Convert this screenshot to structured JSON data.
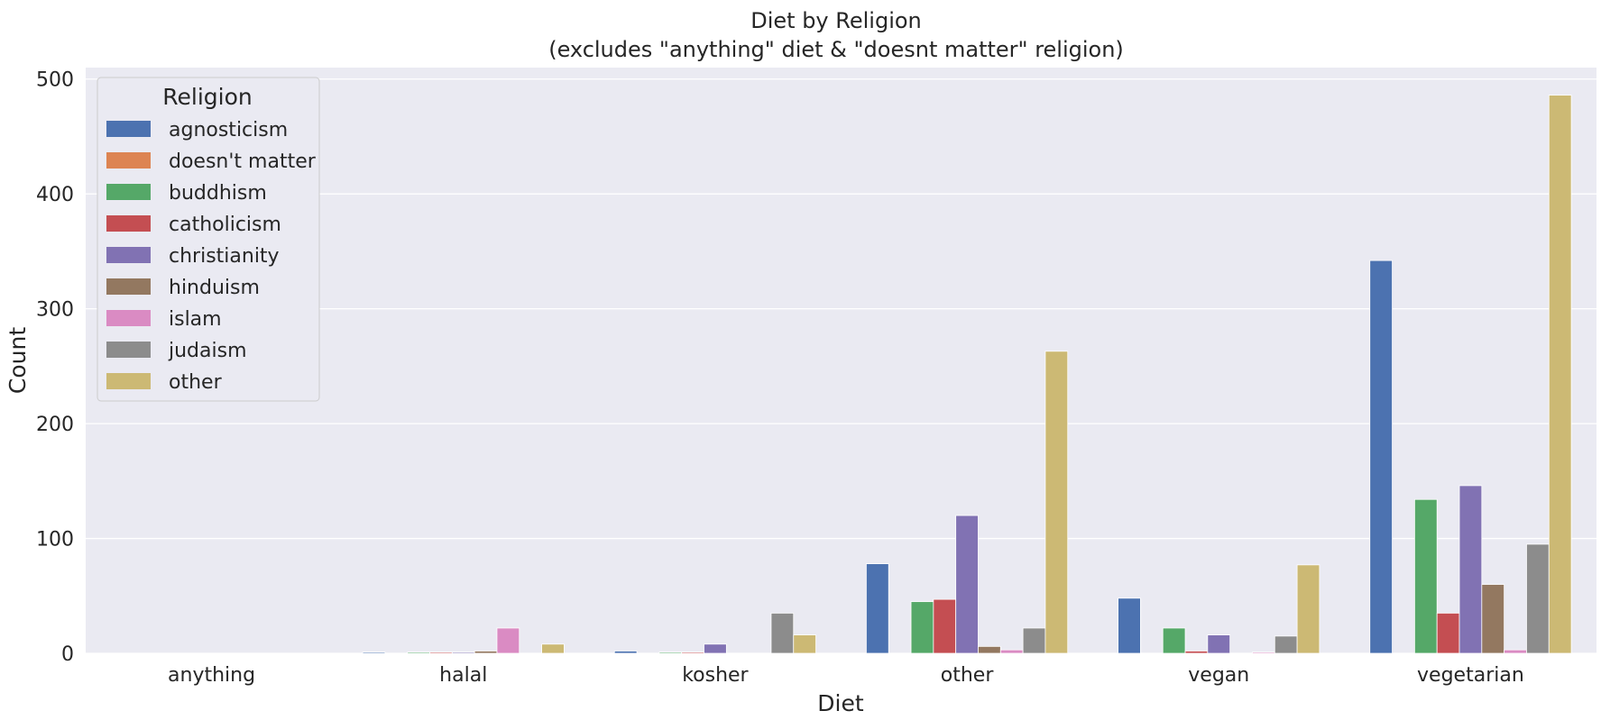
{
  "chart_data": {
    "type": "bar",
    "title": "Diet by Religion",
    "subtitle": "(excludes \"anything\" diet & \"doesnt matter\" religion)",
    "xlabel": "Diet",
    "ylabel": "Count",
    "categories": [
      "anything",
      "halal",
      "kosher",
      "other",
      "vegan",
      "vegetarian"
    ],
    "ylim": [
      0,
      510
    ],
    "yticks": [
      0,
      100,
      200,
      300,
      400,
      500
    ],
    "grid": true,
    "legend": {
      "title": "Religion",
      "placement": "top-left"
    },
    "series": [
      {
        "name": "agnosticism",
        "color": "#4c72b0",
        "values": [
          0,
          1,
          2,
          78,
          48,
          342
        ]
      },
      {
        "name": "doesn't matter",
        "color": "#dd8452",
        "values": [
          0,
          0,
          0,
          0,
          0,
          0
        ]
      },
      {
        "name": "buddhism",
        "color": "#55a868",
        "values": [
          0,
          1,
          1,
          45,
          22,
          134
        ]
      },
      {
        "name": "catholicism",
        "color": "#c44e52",
        "values": [
          0,
          1,
          1,
          47,
          2,
          35
        ]
      },
      {
        "name": "christianity",
        "color": "#8172b3",
        "values": [
          0,
          1,
          8,
          120,
          16,
          146
        ]
      },
      {
        "name": "hinduism",
        "color": "#937860",
        "values": [
          0,
          2,
          0,
          6,
          0,
          60
        ]
      },
      {
        "name": "islam",
        "color": "#da8bc3",
        "values": [
          0,
          22,
          0,
          3,
          1,
          3
        ]
      },
      {
        "name": "judaism",
        "color": "#8c8c8c",
        "values": [
          0,
          0,
          35,
          22,
          15,
          95
        ]
      },
      {
        "name": "other",
        "color": "#ccb974",
        "values": [
          0,
          8,
          16,
          263,
          77,
          486
        ]
      }
    ]
  }
}
